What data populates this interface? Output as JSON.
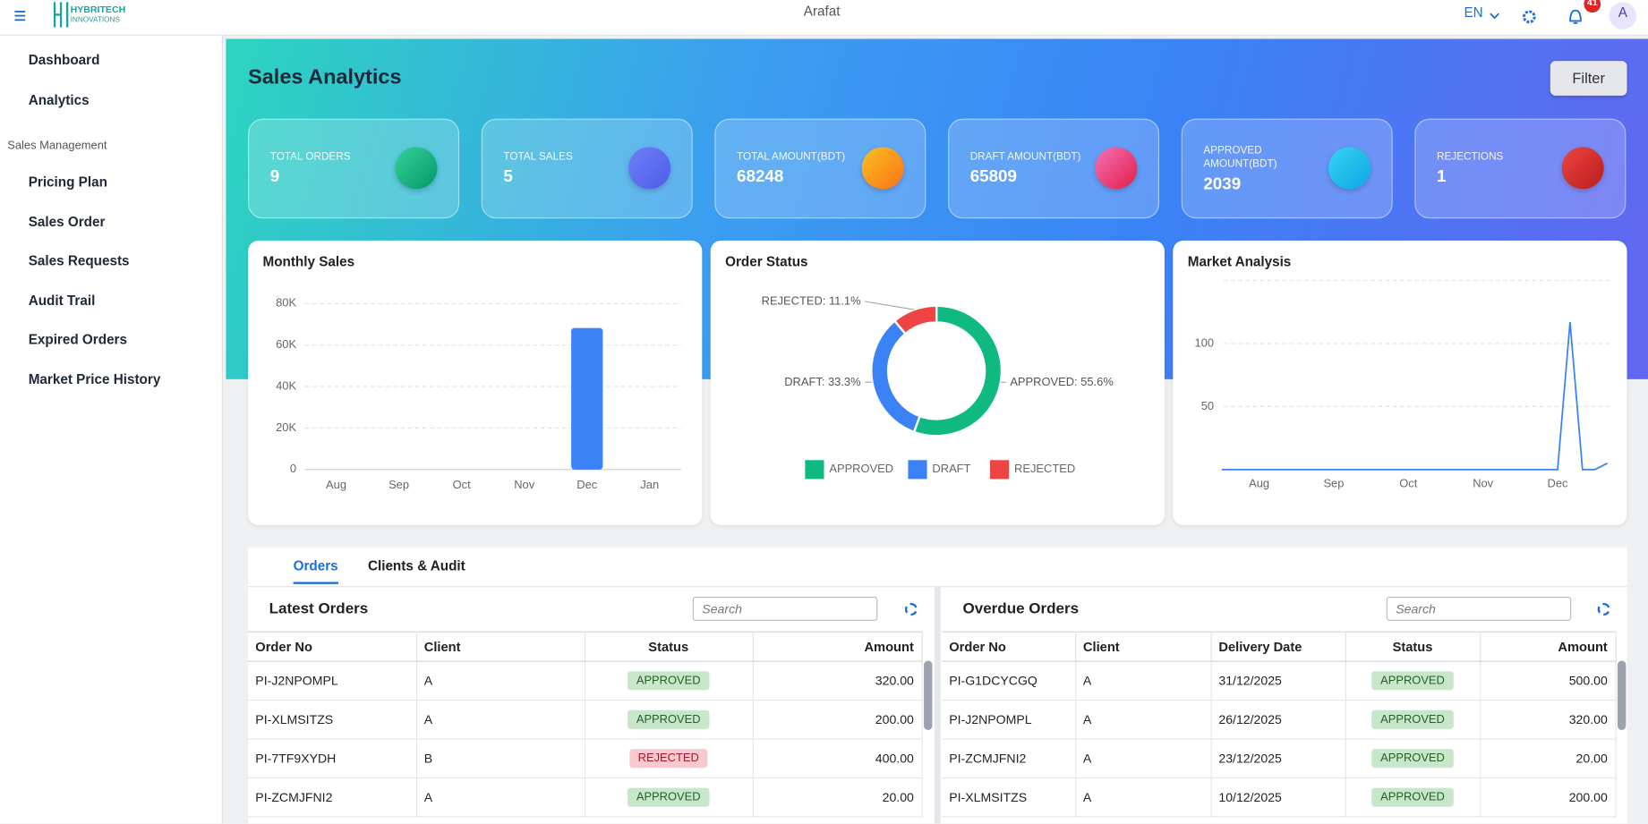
{
  "header": {
    "brand_line1": "HYBRITECH",
    "brand_line2": "INNOVATIONS",
    "user": "Arafat",
    "language": "EN",
    "notification_count": 41,
    "avatar": "A"
  },
  "sidebar": {
    "items": [
      "Dashboard",
      "Analytics"
    ],
    "section": "Sales Management",
    "section_items": [
      "Pricing Plan",
      "Sales Order",
      "Sales Requests",
      "Audit Trail",
      "Expired Orders",
      "Market Price History"
    ]
  },
  "page": {
    "title": "Sales Analytics",
    "filter_button": "Filter"
  },
  "kpis": [
    {
      "label": "TOTAL ORDERS",
      "value": 9
    },
    {
      "label": "TOTAL SALES",
      "value": 5
    },
    {
      "label": "TOTAL AMOUNT(BDT)",
      "value": 68248
    },
    {
      "label": "DRAFT AMOUNT(BDT)",
      "value": 65809
    },
    {
      "label": "APPROVED AMOUNT(BDT)",
      "value": 2039
    },
    {
      "label": "REJECTIONS",
      "value": 1
    }
  ],
  "chart_data": [
    {
      "type": "bar",
      "title": "Monthly Sales",
      "categories": [
        "Aug",
        "Sep",
        "Oct",
        "Nov",
        "Dec",
        "Jan"
      ],
      "values": [
        0,
        0,
        0,
        0,
        68248,
        0
      ],
      "color": "#3b82f6",
      "ylim": [
        0,
        80000
      ],
      "yticks": [
        0,
        {
          "value": 20000,
          "label": "20K"
        },
        {
          "value": 40000,
          "label": "40K"
        },
        {
          "value": 60000,
          "label": "60K"
        },
        {
          "value": 80000,
          "label": "80K"
        }
      ],
      "grid": true
    },
    {
      "type": "pie",
      "title": "Order Status",
      "categories": [
        "APPROVED",
        "DRAFT",
        "REJECTED"
      ],
      "values": [
        55.6,
        33.3,
        11.1
      ],
      "value_labels": [
        "APPROVED: 55.6%",
        "DRAFT: 33.3%",
        "REJECTED: 11.1%"
      ],
      "colors": [
        "#10b981",
        "#3b82f6",
        "#ef4444"
      ],
      "donut": true,
      "legend": "bottom"
    },
    {
      "type": "line",
      "title": "Market Analysis",
      "categories": [
        null,
        null,
        null,
        "Aug",
        null,
        null,
        null,
        null,
        null,
        "Sep",
        null,
        null,
        null,
        null,
        null,
        "Oct",
        null,
        null,
        null,
        null,
        null,
        "Nov",
        null,
        null,
        null,
        null,
        null,
        "Dec",
        null,
        null,
        null,
        null
      ],
      "values": [
        0,
        0,
        0,
        0,
        0,
        0,
        0,
        0,
        0,
        0,
        0,
        0,
        0,
        0,
        0,
        0,
        0,
        0,
        0,
        0,
        0,
        0,
        0,
        0,
        0,
        0,
        0,
        0,
        117,
        0,
        0,
        5
      ],
      "color": "#3b82f6",
      "ylim": [
        0,
        150
      ],
      "yticks": [
        50,
        100
      ],
      "grid": true
    }
  ],
  "tabs": [
    "Orders",
    "Clients & Audit"
  ],
  "latest_orders": {
    "title": "Latest Orders",
    "search_placeholder": "Search",
    "columns": [
      "Order No",
      "Client",
      "Status",
      "Amount"
    ],
    "rows": [
      [
        "PI-J2NPOMPL",
        "A",
        "APPROVED",
        "320.00"
      ],
      [
        "PI-XLMSITZS",
        "A",
        "APPROVED",
        "200.00"
      ],
      [
        "PI-7TF9XYDH",
        "B",
        "REJECTED",
        "400.00"
      ],
      [
        "PI-ZCMJFNI2",
        "A",
        "APPROVED",
        "20.00"
      ]
    ]
  },
  "overdue_orders": {
    "title": "Overdue Orders",
    "search_placeholder": "Search",
    "columns": [
      "Order No",
      "Client",
      "Delivery Date",
      "Status",
      "Amount"
    ],
    "rows": [
      [
        "PI-G1DCYCGQ",
        "A",
        "31/12/2025",
        "APPROVED",
        "500.00"
      ],
      [
        "PI-J2NPOMPL",
        "A",
        "26/12/2025",
        "APPROVED",
        "320.00"
      ],
      [
        "PI-ZCMJFNI2",
        "A",
        "23/12/2025",
        "APPROVED",
        "20.00"
      ],
      [
        "PI-XLMSITZS",
        "A",
        "10/12/2025",
        "APPROVED",
        "200.00"
      ]
    ]
  }
}
